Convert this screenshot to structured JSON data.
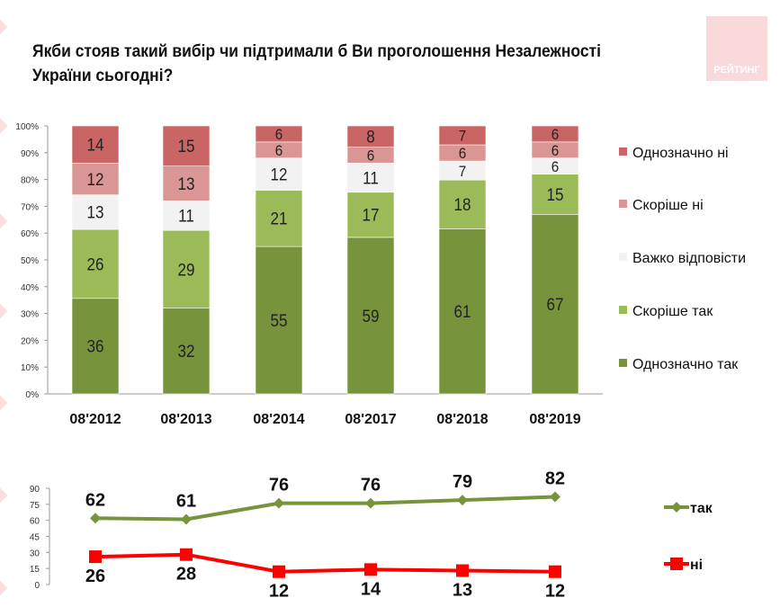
{
  "title": "Якби стояв такий вибір чи підтримали б Ви проголошення Незалежності України сьогодні?",
  "logo_text": "РЕЙТИНГ",
  "chart_data": [
    {
      "type": "bar",
      "stacked": true,
      "categories": [
        "08'2012",
        "08'2013",
        "08'2014",
        "08'2017",
        "08'2018",
        "08'2019"
      ],
      "yticks": [
        "0%",
        "10%",
        "20%",
        "30%",
        "40%",
        "50%",
        "60%",
        "70%",
        "80%",
        "90%",
        "100%"
      ],
      "ylim": [
        0,
        100
      ],
      "legend_position": "right",
      "series": [
        {
          "name": "Однозначно так",
          "color": "#77933c",
          "values": [
            36,
            32,
            55,
            59,
            61,
            67
          ]
        },
        {
          "name": "Скоріше так",
          "color": "#9bbb59",
          "values": [
            26,
            29,
            21,
            17,
            18,
            15
          ]
        },
        {
          "name": "Важко відповісти",
          "color": "#f2f2f2",
          "values": [
            13,
            11,
            12,
            11,
            7,
            6
          ]
        },
        {
          "name": "Скоріше ні",
          "color": "#d99694",
          "values": [
            12,
            13,
            6,
            6,
            6,
            6
          ]
        },
        {
          "name": "Однозначно ні",
          "color": "#c96565",
          "values": [
            14,
            15,
            6,
            8,
            7,
            6
          ]
        }
      ]
    },
    {
      "type": "line",
      "categories": [
        "08'2012",
        "08'2013",
        "08'2014",
        "08'2017",
        "08'2018",
        "08'2019"
      ],
      "yticks": [
        "0",
        "15",
        "30",
        "45",
        "60",
        "75",
        "90"
      ],
      "ylim": [
        0,
        90
      ],
      "legend_position": "right",
      "series": [
        {
          "name": "так",
          "color": "#77933c",
          "marker": "diamond",
          "values": [
            62,
            61,
            76,
            76,
            79,
            82
          ]
        },
        {
          "name": "ні",
          "color": "#ff0000",
          "marker": "square",
          "values": [
            26,
            28,
            12,
            14,
            13,
            12
          ]
        }
      ]
    }
  ]
}
